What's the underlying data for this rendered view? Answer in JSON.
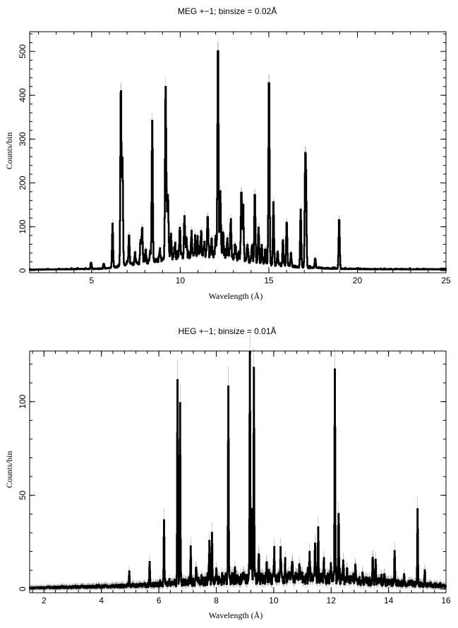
{
  "chart_data": [
    {
      "type": "line",
      "title": "MEG +−1; binsize = 0.02Å",
      "xlabel": "Wavelength (Å)",
      "ylabel": "Counts/bin",
      "xlim": [
        1.5,
        25
      ],
      "ylim": [
        -5,
        545
      ],
      "xticks": [
        5,
        10,
        15,
        20,
        25
      ],
      "yticks": [
        0,
        100,
        200,
        300,
        400,
        500
      ],
      "xtick_labels": [
        "5",
        "10",
        "15",
        "20",
        "25"
      ],
      "ytick_labels": [
        "0",
        "100",
        "200",
        "300",
        "400",
        "500"
      ],
      "error_bars": true,
      "continuum": [
        [
          1.5,
          2
        ],
        [
          3.5,
          3
        ],
        [
          5.5,
          4
        ],
        [
          6.1,
          6
        ],
        [
          7.2,
          14
        ],
        [
          8.5,
          22
        ],
        [
          9.5,
          30
        ],
        [
          11,
          38
        ],
        [
          12.5,
          33
        ],
        [
          14,
          22
        ],
        [
          15.5,
          12
        ],
        [
          17,
          7
        ],
        [
          19,
          4
        ],
        [
          21,
          3
        ],
        [
          25,
          3
        ]
      ],
      "lines": [
        [
          6.18,
          102
        ],
        [
          6.65,
          421
        ],
        [
          6.74,
          250
        ],
        [
          7.11,
          82
        ],
        [
          7.76,
          70
        ],
        [
          7.85,
          98
        ],
        [
          8.42,
          338
        ],
        [
          9.17,
          408
        ],
        [
          9.23,
          130
        ],
        [
          9.31,
          170
        ],
        [
          9.48,
          80
        ],
        [
          9.98,
          100
        ],
        [
          10.24,
          123
        ],
        [
          10.64,
          88
        ],
        [
          11.17,
          85
        ],
        [
          11.55,
          130
        ],
        [
          11.77,
          78
        ],
        [
          12.13,
          530
        ],
        [
          12.26,
          188
        ],
        [
          12.42,
          92
        ],
        [
          12.85,
          118
        ],
        [
          13.45,
          182
        ],
        [
          13.55,
          153
        ],
        [
          14.21,
          183
        ],
        [
          14.42,
          95
        ],
        [
          15.01,
          448
        ],
        [
          15.26,
          155
        ],
        [
          15.8,
          68
        ],
        [
          16.01,
          115
        ],
        [
          16.8,
          138
        ],
        [
          17.05,
          210
        ],
        [
          17.1,
          178
        ],
        [
          18.97,
          122
        ]
      ],
      "minor_lines": [
        [
          4.97,
          18
        ],
        [
          5.68,
          15
        ],
        [
          7.0,
          22
        ],
        [
          7.45,
          40
        ],
        [
          8.05,
          45
        ],
        [
          8.3,
          42
        ],
        [
          8.85,
          50
        ],
        [
          9.7,
          55
        ],
        [
          10.35,
          70
        ],
        [
          10.85,
          75
        ],
        [
          11.0,
          65
        ],
        [
          11.35,
          60
        ],
        [
          12.0,
          72
        ],
        [
          12.65,
          70
        ],
        [
          13.1,
          60
        ],
        [
          13.8,
          62
        ],
        [
          14.05,
          58
        ],
        [
          14.6,
          55
        ],
        [
          14.8,
          50
        ],
        [
          15.5,
          45
        ],
        [
          16.25,
          40
        ],
        [
          17.62,
          28
        ]
      ]
    },
    {
      "type": "line",
      "title": "HEG +−1; binsize = 0.01Å",
      "xlabel": "Wavelength (Å)",
      "ylabel": "Counts/bin",
      "xlim": [
        1.5,
        16
      ],
      "ylim": [
        -2,
        127
      ],
      "xticks": [
        2,
        4,
        6,
        8,
        10,
        12,
        14,
        16
      ],
      "yticks": [
        0,
        50,
        100
      ],
      "xtick_labels": [
        "2",
        "4",
        "6",
        "8",
        "10",
        "12",
        "14",
        "16"
      ],
      "ytick_labels": [
        "0",
        "50",
        "100"
      ],
      "error_bars": true,
      "continuum": [
        [
          1.5,
          0.5
        ],
        [
          3,
          1
        ],
        [
          4.5,
          1.5
        ],
        [
          5.5,
          2
        ],
        [
          6.5,
          3
        ],
        [
          8,
          4.5
        ],
        [
          9.5,
          5.5
        ],
        [
          11,
          6
        ],
        [
          12.5,
          5
        ],
        [
          14,
          3.5
        ],
        [
          15,
          2.5
        ],
        [
          16,
          1.5
        ]
      ],
      "lines": [
        [
          4.97,
          9
        ],
        [
          5.68,
          14
        ],
        [
          6.18,
          36
        ],
        [
          6.65,
          113
        ],
        [
          6.74,
          98
        ],
        [
          7.11,
          22
        ],
        [
          7.76,
          26
        ],
        [
          7.85,
          32
        ],
        [
          8.42,
          110
        ],
        [
          9.17,
          126
        ],
        [
          9.23,
          41
        ],
        [
          9.31,
          118
        ],
        [
          9.48,
          20
        ],
        [
          10.02,
          20
        ],
        [
          10.24,
          23
        ],
        [
          10.64,
          16
        ],
        [
          11.25,
          20
        ],
        [
          11.44,
          27
        ],
        [
          11.55,
          33
        ],
        [
          12.13,
          120
        ],
        [
          12.26,
          42
        ],
        [
          12.42,
          17
        ],
        [
          12.85,
          13
        ],
        [
          13.45,
          18
        ],
        [
          13.55,
          14
        ],
        [
          14.21,
          21
        ],
        [
          15.01,
          42
        ],
        [
          15.26,
          10
        ]
      ],
      "minor_lines": [
        [
          7.3,
          12
        ],
        [
          8.0,
          10
        ],
        [
          8.65,
          11
        ],
        [
          8.95,
          9
        ],
        [
          9.75,
          14
        ],
        [
          10.4,
          15
        ],
        [
          10.9,
          12
        ],
        [
          11.75,
          14
        ],
        [
          12.0,
          11
        ],
        [
          12.55,
          10
        ],
        [
          13.1,
          9
        ],
        [
          13.85,
          8
        ],
        [
          14.55,
          6
        ]
      ]
    }
  ]
}
